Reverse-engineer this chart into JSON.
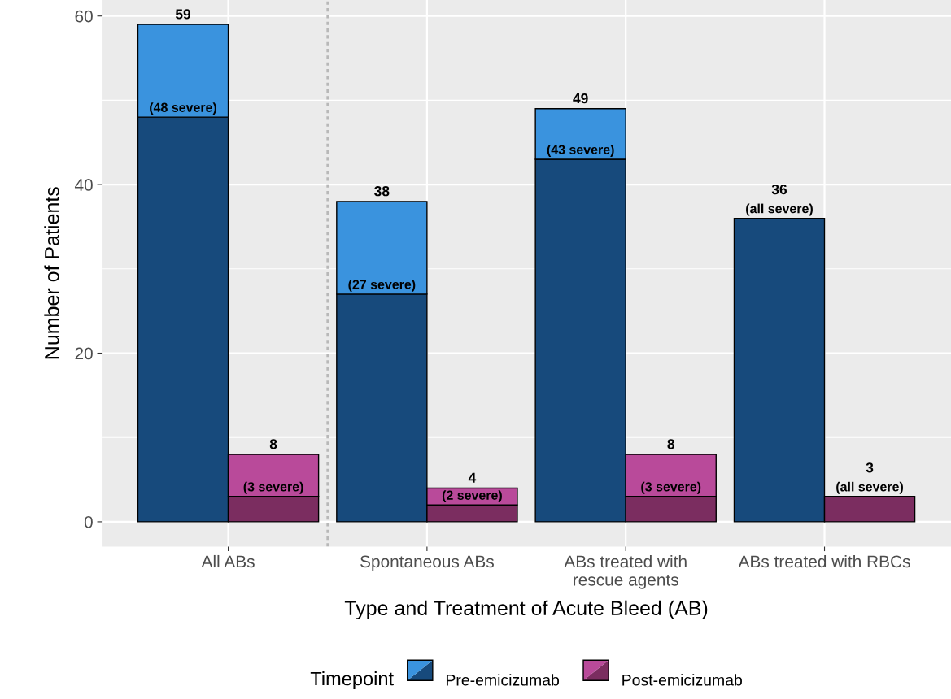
{
  "chart_data": {
    "type": "bar",
    "xlabel": "Type and Treatment of Acute Bleed (AB)",
    "ylabel": "Number of Patients",
    "legend_title": "Timepoint",
    "stacked": true,
    "categories": [
      null,
      null,
      null,
      null,
      null,
      null,
      null,
      null
    ],
    "annotations": [
      "All ABs",
      "Spontaneous ABs",
      "ABs treated with\nrescue agents",
      "ABs treated with RBCs"
    ],
    "series": [
      {
        "color": "#174a7c",
        "values": [
          48,
          null,
          27,
          null,
          43,
          null,
          36,
          null
        ],
        "value_labels": [
          "(48 severe)",
          null,
          "(27 severe)",
          null,
          "(43 severe)",
          null,
          "(all severe)",
          null
        ]
      },
      {
        "name": "Pre-emicizumab",
        "color": "#3a93de",
        "values": [
          11,
          null,
          11,
          null,
          6,
          null,
          0,
          null
        ]
      },
      {
        "color": "#7b2d60",
        "values": [
          null,
          3,
          null,
          2,
          null,
          3,
          null,
          3
        ],
        "value_labels": [
          null,
          "(3 severe)",
          null,
          "(2 severe)",
          null,
          "(3 severe)",
          null,
          "(all severe)"
        ]
      },
      {
        "name": "Post-emicizumab",
        "color": "#b94a9a",
        "values": [
          null,
          5,
          null,
          2,
          null,
          5,
          null,
          0
        ]
      }
    ],
    "totals": [
      "59",
      "8",
      "38",
      "4",
      "49",
      "8",
      "36",
      "3"
    ],
    "ylim": [
      -2.95,
      61.9
    ],
    "yticks": [
      0,
      20,
      40,
      60
    ],
    "grid": true,
    "legend": "bottom"
  }
}
